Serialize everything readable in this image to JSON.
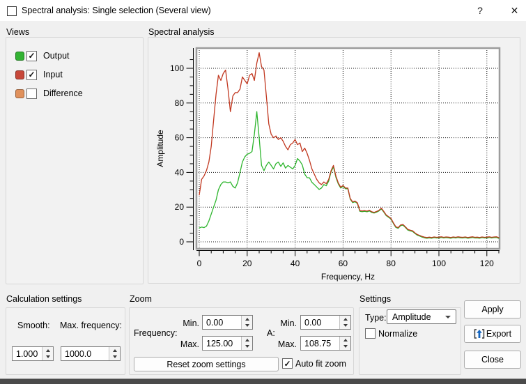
{
  "window": {
    "title": "Spectral analysis: Single selection (Several view)",
    "help_glyph": "?",
    "close_glyph": "✕"
  },
  "icons": {
    "check": "✓"
  },
  "views": {
    "label": "Views",
    "items": [
      {
        "label": "Output",
        "color": "#33b333",
        "checked": true
      },
      {
        "label": "Input",
        "color": "#c7483a",
        "checked": true
      },
      {
        "label": "Difference",
        "color": "#e0915c",
        "checked": false
      }
    ]
  },
  "chart_group": {
    "label": "Spectral analysis"
  },
  "chart_data": {
    "type": "line",
    "title": "Spectral analysis",
    "xlabel": "Frequency, Hz",
    "ylabel": "Amplitude",
    "xlim": [
      0,
      125
    ],
    "ylim": [
      0,
      108.75
    ],
    "x_ticks": [
      0,
      20,
      40,
      60,
      80,
      100,
      120
    ],
    "y_ticks": [
      0,
      20,
      40,
      60,
      80,
      100
    ],
    "minor_tick_step_x": 5,
    "minor_tick_step_y": 5,
    "grid": true,
    "legend_position": "none",
    "x_step": 1,
    "series": [
      {
        "name": "Output",
        "color": "#2db52d",
        "values": [
          8,
          8.5,
          8.2,
          9,
          12,
          16,
          20,
          24,
          30,
          33,
          34.5,
          34.5,
          34,
          34.5,
          32,
          31,
          34,
          40,
          46,
          49,
          50.5,
          51,
          52,
          62,
          75,
          60,
          44,
          41,
          44,
          46,
          44,
          42,
          45,
          46,
          43.5,
          45.5,
          42.5,
          44,
          43,
          42,
          44,
          48,
          46.5,
          44.3,
          39,
          37,
          36.9,
          34.3,
          33,
          31.6,
          30.2,
          31,
          33,
          32.3,
          35,
          40.3,
          43.2,
          37.2,
          33.4,
          31,
          32,
          30.6,
          30.6,
          24.6,
          22.6,
          23.1,
          22.1,
          17.6,
          17.4,
          17.6,
          17.3,
          17.8,
          16.9,
          16.6,
          17.1,
          17.8,
          19,
          17.1,
          15.1,
          14.1,
          13.1,
          10.6,
          8.3,
          7.8,
          9.3,
          9.6,
          8.3,
          6.8,
          6.3,
          6,
          4.8,
          3.8,
          3.3,
          2.7,
          2.3,
          2.1,
          2.3,
          2.1,
          2.4,
          2.2,
          2.3,
          2.5,
          2.2,
          2.4,
          2.3,
          2.1,
          2.4,
          2.2,
          2.5,
          2.3,
          2.2,
          2.4,
          2.1,
          2.3,
          2.5,
          2.2,
          2.3,
          2.1,
          2.4,
          2.2,
          2.3,
          2.5,
          2.2,
          2.4,
          2.5,
          2
        ]
      },
      {
        "name": "Input",
        "color": "#c1371f",
        "values": [
          27,
          36,
          38,
          41,
          46,
          55,
          70,
          85,
          96,
          93,
          97,
          99,
          88,
          75,
          84,
          86,
          86,
          88,
          95,
          93,
          91,
          96,
          97,
          93,
          103,
          109,
          101,
          99,
          84,
          68,
          62,
          60,
          61,
          59,
          60,
          58,
          55,
          53,
          56,
          57,
          59,
          56,
          57,
          52,
          54,
          51,
          47,
          42,
          39,
          36,
          34,
          33,
          34.5,
          33.5,
          36,
          41,
          44,
          38,
          34,
          31.5,
          32.5,
          31,
          31,
          25,
          23,
          23.5,
          22.5,
          18,
          17.8,
          18,
          17.7,
          18.2,
          17.3,
          17,
          17.5,
          18.2,
          19.4,
          17.5,
          15.5,
          14.5,
          13.5,
          11,
          8.7,
          8.2,
          9.7,
          10,
          8.7,
          7.2,
          6.7,
          6.4,
          5.2,
          4.2,
          3.7,
          3.1,
          2.7,
          2.5,
          2.7,
          2.5,
          2.8,
          2.6,
          2.7,
          2.9,
          2.6,
          2.8,
          2.7,
          2.5,
          2.8,
          2.6,
          2.9,
          2.7,
          2.6,
          2.8,
          2.5,
          2.7,
          2.9,
          2.6,
          2.7,
          2.5,
          2.8,
          2.6,
          2.7,
          2.9,
          2.6,
          2.8,
          2.9,
          2.4
        ]
      }
    ]
  },
  "calculation": {
    "label": "Calculation settings",
    "smooth_label": "Smooth:",
    "smooth_value": "1.000",
    "maxfreq_label": "Max. frequency:",
    "maxfreq_value": "1000.0"
  },
  "zoom": {
    "label": "Zoom",
    "frequency_label": "Frequency:",
    "a_label": "A:",
    "min_label": "Min.",
    "max_label": "Max.",
    "freq_min": "0.00",
    "freq_max": "125.00",
    "a_min": "0.00",
    "a_max": "108.75",
    "reset_button": "Reset zoom settings",
    "autofit_label": "Auto fit zoom",
    "autofit_checked": true
  },
  "settings": {
    "label": "Settings",
    "type_label": "Type:",
    "type_value": "Amplitude",
    "normalize_label": "Normalize",
    "normalize_checked": false
  },
  "actions": {
    "apply": "Apply",
    "export": "Export",
    "close": "Close"
  }
}
